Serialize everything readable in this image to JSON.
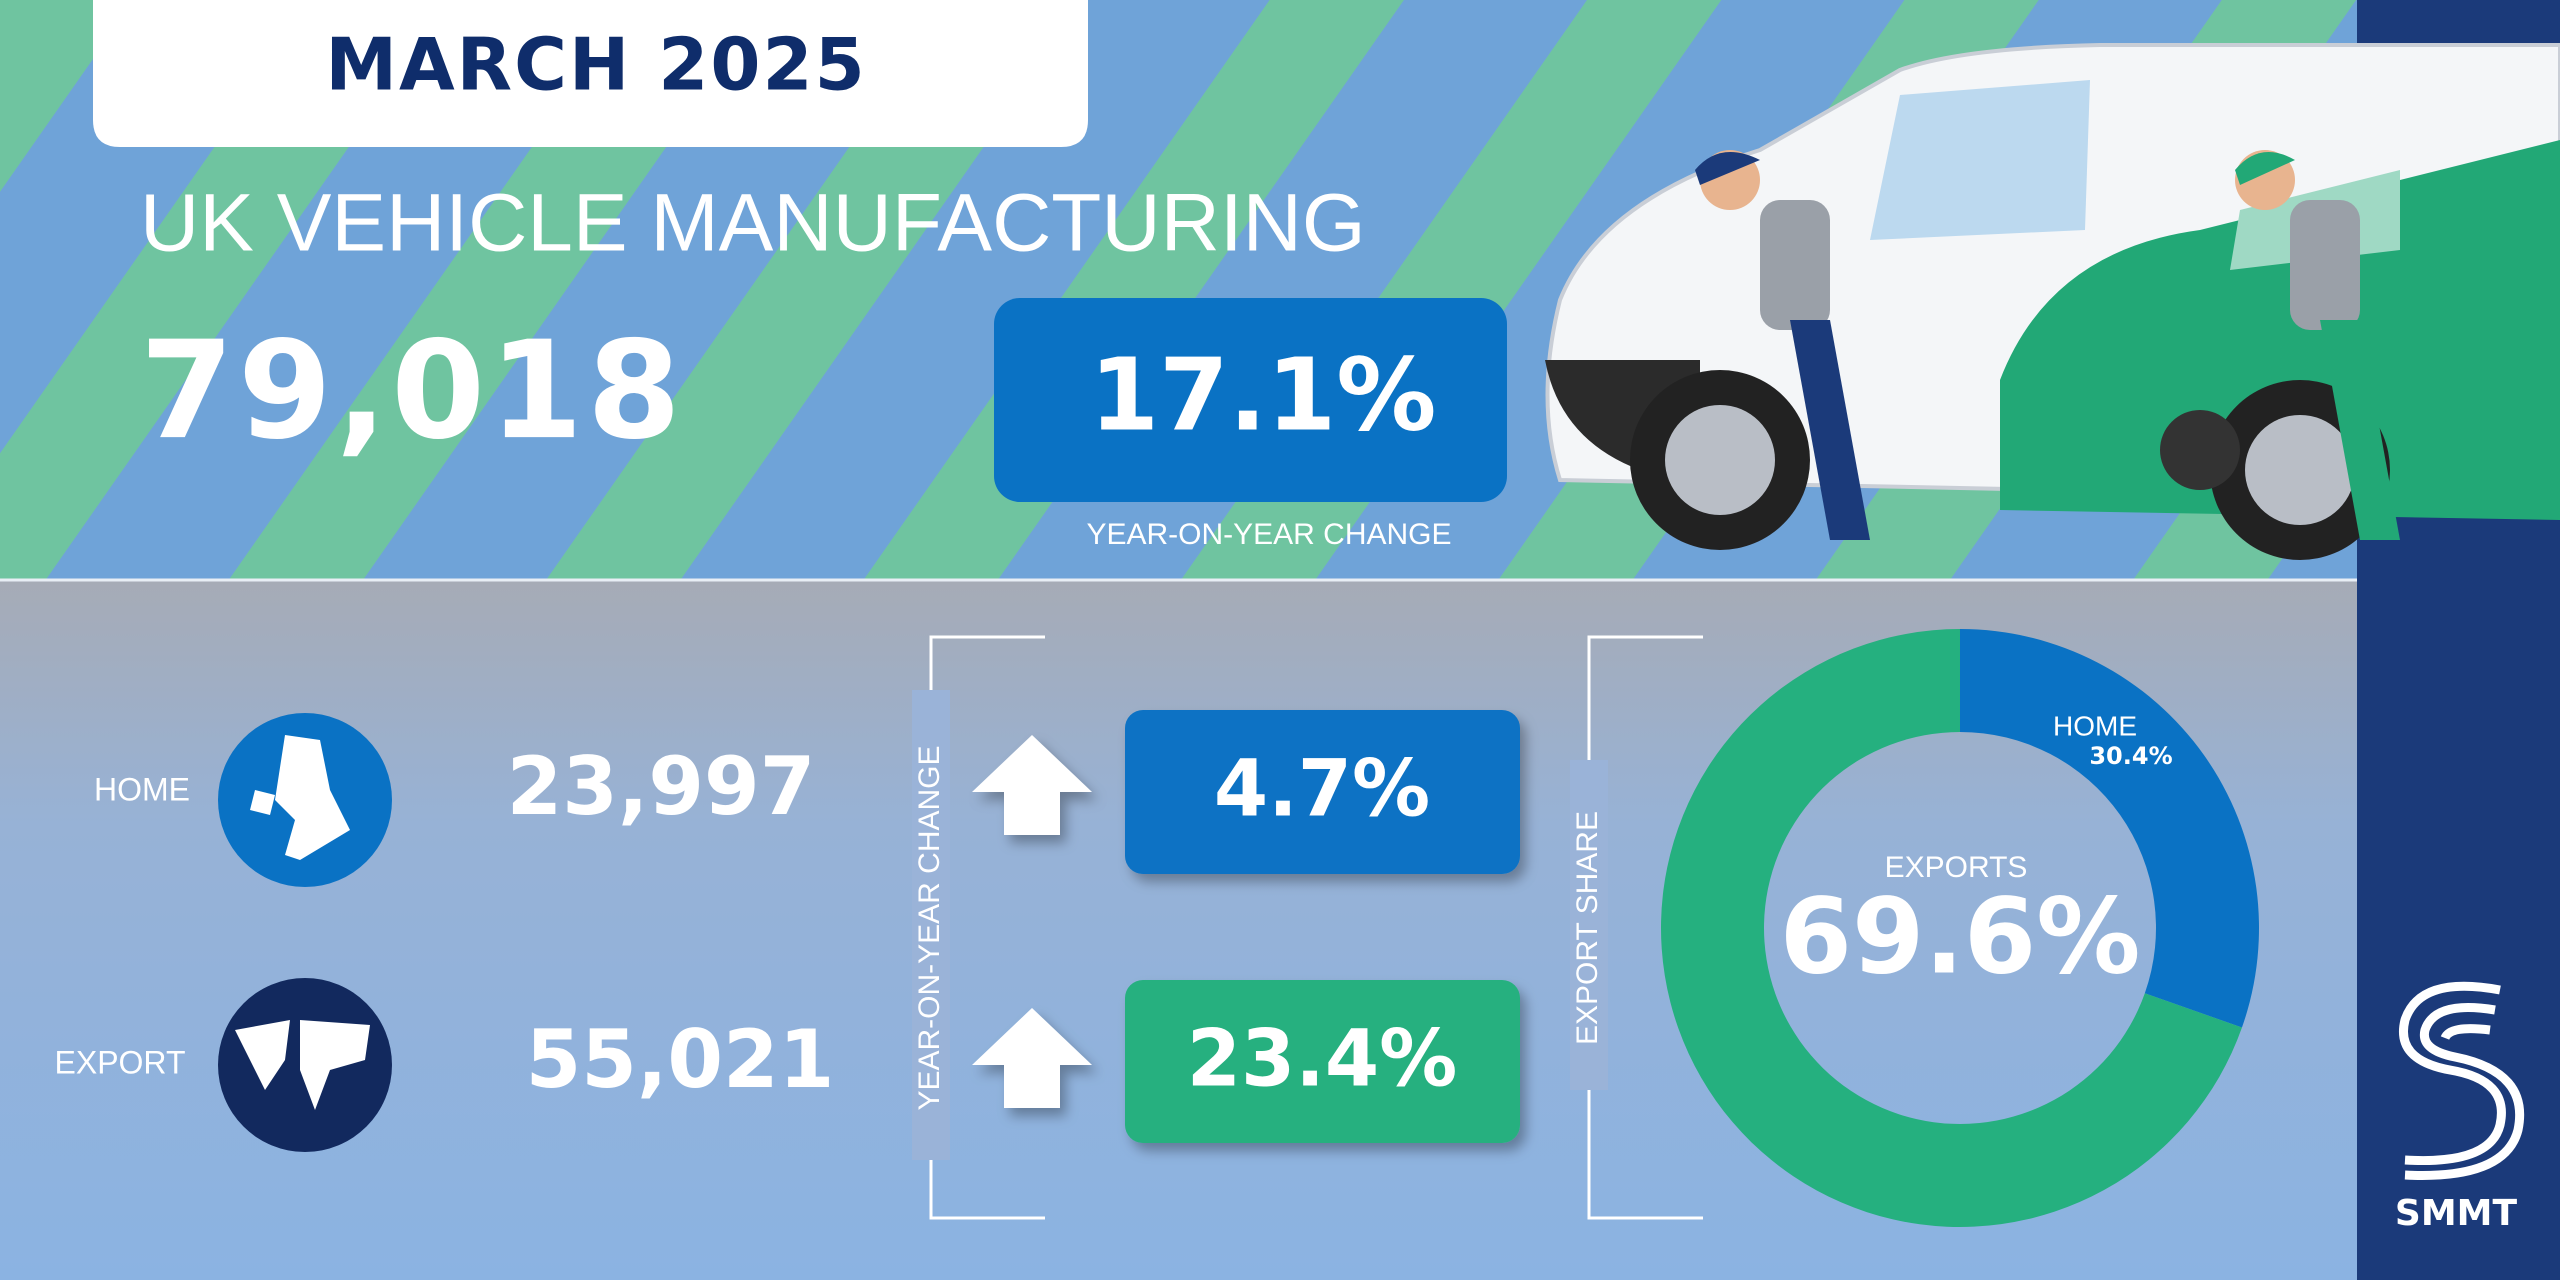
{
  "header": {
    "title": "MARCH 2025",
    "subtitle": "UK VEHICLE MANUFACTURING",
    "total": "79,018",
    "change": "17.1%",
    "change_label": "YEAR-ON-YEAR CHANGE"
  },
  "rows": [
    {
      "label": "HOME",
      "volume": "23,997",
      "change": "4.7%"
    },
    {
      "label": "EXPORT",
      "volume": "55,021",
      "change": "23.4%"
    }
  ],
  "rows_label": "YEAR-ON-YEAR CHANGE",
  "chart_data": {
    "type": "donut",
    "title": "EXPORT SHARE",
    "categories": [
      "HOME",
      "EXPORTS"
    ],
    "values": [
      30.4,
      69.6
    ],
    "value_labels": [
      "30.4%",
      "69.6%"
    ],
    "colors": [
      "#0a72c4",
      "#25b07f"
    ]
  },
  "logo": "SMMT"
}
